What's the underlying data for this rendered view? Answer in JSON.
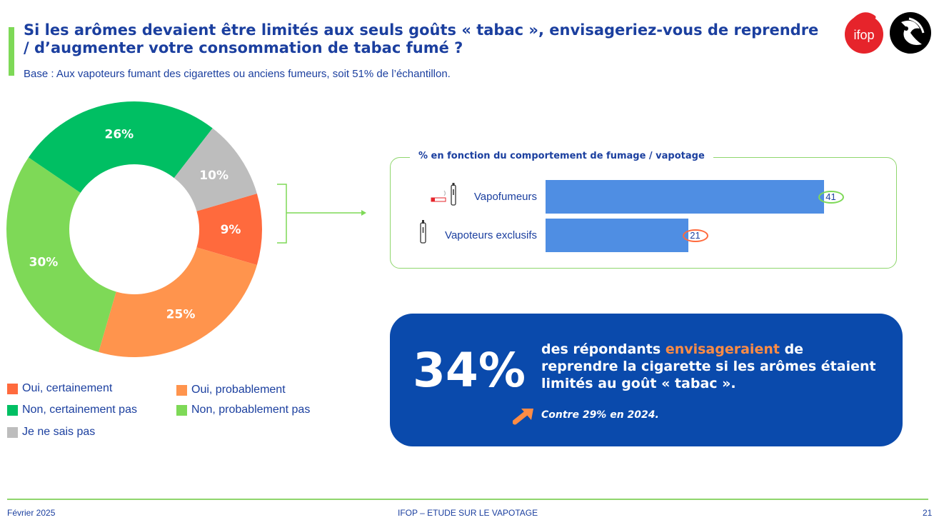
{
  "header": {
    "title": "Si les arômes devaient être limités aux seuls goûts « tabac », envisageriez-vous de reprendre / d’augmenter votre consommation de tabac fumé ?",
    "subtitle": "Base : Aux vapoteurs fumant des cigarettes ou anciens fumeurs, soit 51% de l’échantillon.",
    "logo_text": "ifop"
  },
  "colors": {
    "oui_certainement": "#ff6a3d",
    "oui_probablement": "#ff944d",
    "non_probablement_pas": "#7ed957",
    "non_certainement_pas": "#00bf63",
    "ne_sais_pas": "#bdbdbd",
    "bar": "#4f8ee3",
    "ring_green": "#7ed957",
    "ring_orange": "#ff6a3d",
    "callout_bg": "#0a4aac",
    "brand_blue": "#1b3f9f"
  },
  "chart_data": [
    {
      "type": "pie",
      "title": "",
      "slices": [
        {
          "key": "oui_certainement",
          "label": "Oui, certainement",
          "value": 9,
          "display": "9%"
        },
        {
          "key": "oui_probablement",
          "label": "Oui, probablement",
          "value": 25,
          "display": "25%"
        },
        {
          "key": "non_probablement_pas",
          "label": "Non, probablement pas",
          "value": 30,
          "display": "30%"
        },
        {
          "key": "non_certainement_pas",
          "label": "Non, certainement pas",
          "value": 26,
          "display": "26%"
        },
        {
          "key": "ne_sais_pas",
          "label": "Je ne sais pas",
          "value": 10,
          "display": "10%"
        }
      ],
      "legend": [
        "Oui, certainement",
        "Oui, probablement",
        "Non, certainement pas",
        "Non, probablement pas",
        "Je ne sais pas"
      ]
    },
    {
      "type": "bar",
      "orientation": "horizontal",
      "title": "% en fonction du comportement de fumage / vapotage",
      "categories": [
        "Vapofumeurs",
        "Vapoteurs exclusifs"
      ],
      "values": [
        41,
        21
      ],
      "xlim": [
        0,
        50
      ]
    }
  ],
  "callout": {
    "big_value": "34%",
    "text_before": "des répondants ",
    "text_highlight": "envisageraient",
    "text_after": " de reprendre la cigarette si les arômes étaient limités au goût « tabac ».",
    "comparison": "Contre 29% en 2024."
  },
  "footer": {
    "date": "Février 2025",
    "center_left": "IFOP",
    "center_sep": "–",
    "center_right": "ETUDE SUR LE VAPOTAGE",
    "page": "21"
  }
}
